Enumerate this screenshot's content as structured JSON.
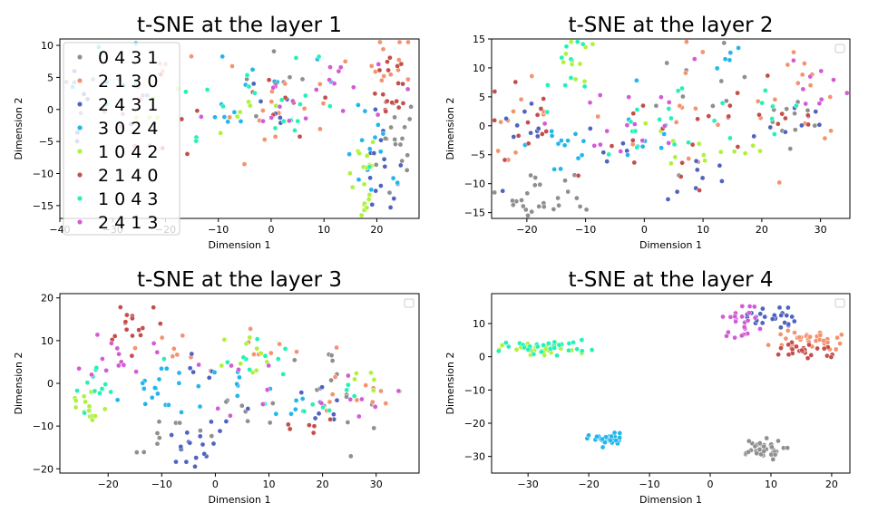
{
  "colors": {
    "0 4 3 1": "#8f8f8f",
    "2 1 3 0": "#f4936e",
    "2 4 3 1": "#4f63bf",
    "3 0 2 4": "#22b6ec",
    "1 0 4 2": "#aef23a",
    "2 1 4 0": "#c44e4a",
    "1 0 4 3": "#22f2b6",
    "2 4 1 3": "#d45bd6"
  },
  "legend_labels": [
    "0 4 3 1",
    "2 1 3 0",
    "2 4 3 1",
    "3 0 2 4",
    "1 0 4 2",
    "2 1 4 0",
    "1 0 4 3",
    "2 4 1 3"
  ],
  "chart_data": [
    {
      "type": "scatter",
      "title": "t-SNE at the layer 1",
      "xlabel": "Dimension 1",
      "ylabel": "Dimension 2",
      "xlim": [
        -40,
        28
      ],
      "ylim": [
        -17,
        11
      ],
      "xticks": [
        -40,
        -30,
        -20,
        -10,
        0,
        10,
        20
      ],
      "yticks": [
        -15,
        -10,
        -5,
        0,
        5,
        10
      ],
      "legend": "upper-left",
      "series": [
        {
          "name": "0 4 3 1",
          "clusters": [
            [
              24,
              -6,
              2,
              5,
              18
            ],
            [
              -35,
              5,
              3,
              3,
              6
            ],
            [
              2,
              3,
              4,
              3,
              6
            ]
          ]
        },
        {
          "name": "2 1 3 0",
          "clusters": [
            [
              23,
              7,
              2,
              3,
              12
            ],
            [
              -20,
              4,
              3,
              3,
              6
            ],
            [
              5,
              3,
              6,
              3,
              10
            ],
            [
              -5,
              -4,
              4,
              3,
              6
            ]
          ]
        },
        {
          "name": "2 4 3 1",
          "clusters": [
            [
              21,
              -10,
              2,
              4,
              14
            ],
            [
              -35,
              0,
              4,
              4,
              6
            ],
            [
              -3,
              -1,
              4,
              3,
              6
            ]
          ]
        },
        {
          "name": "3 0 2 4",
          "clusters": [
            [
              20,
              -8,
              3,
              4,
              14
            ],
            [
              -30,
              8,
              4,
              3,
              5
            ],
            [
              0,
              5,
              6,
              3,
              8
            ],
            [
              -12,
              -1,
              5,
              3,
              6
            ]
          ]
        },
        {
          "name": "1 0 4 2",
          "clusters": [
            [
              17,
              -11,
              1.5,
              4,
              18
            ],
            [
              -22,
              2,
              4,
              3,
              5
            ],
            [
              -5,
              0,
              5,
              3,
              6
            ]
          ]
        },
        {
          "name": "2 1 4 0",
          "clusters": [
            [
              24,
              5,
              2,
              3,
              12
            ],
            [
              22,
              1,
              2,
              2,
              6
            ],
            [
              0,
              2,
              6,
              3,
              10
            ],
            [
              -15,
              -3,
              4,
              3,
              4
            ]
          ]
        },
        {
          "name": "1 0 4 3",
          "clusters": [
            [
              -8,
              2,
              6,
              3,
              10
            ],
            [
              5,
              -1,
              5,
              4,
              10
            ],
            [
              -25,
              4,
              4,
              4,
              5
            ]
          ]
        },
        {
          "name": "2 4 1 3",
          "clusters": [
            [
              1,
              1,
              7,
              3,
              12
            ],
            [
              12,
              4,
              5,
              3,
              8
            ],
            [
              -25,
              -3,
              4,
              3,
              5
            ]
          ]
        }
      ]
    },
    {
      "type": "scatter",
      "title": "t-SNE at the layer 2",
      "xlabel": "Dimension 1",
      "ylabel": "Dimension 2",
      "xlim": [
        -26,
        35
      ],
      "ylim": [
        -16,
        15
      ],
      "xticks": [
        -20,
        -10,
        0,
        10,
        20,
        30
      ],
      "yticks": [
        -15,
        -10,
        -5,
        0,
        5,
        10,
        15
      ],
      "series": [
        {
          "name": "0 4 3 1",
          "clusters": [
            [
              -18,
              -12,
              3,
              2,
              22
            ],
            [
              10,
              5,
              4,
              4,
              10
            ],
            [
              25,
              1,
              3,
              4,
              10
            ],
            [
              -10,
              -12,
              2,
              2,
              4
            ]
          ]
        },
        {
          "name": "2 1 3 0",
          "clusters": [
            [
              -22,
              2,
              3,
              3,
              10
            ],
            [
              28,
              5,
              4,
              4,
              12
            ],
            [
              5,
              3,
              8,
              5,
              15
            ]
          ]
        },
        {
          "name": "2 4 3 1",
          "clusters": [
            [
              -20,
              -4,
              3,
              4,
              10
            ],
            [
              10,
              -9,
              3,
              2,
              8
            ],
            [
              25,
              0,
              4,
              3,
              8
            ],
            [
              -5,
              -3,
              3,
              3,
              5
            ]
          ]
        },
        {
          "name": "3 0 2 4",
          "clusters": [
            [
              -14,
              -3,
              3,
              4,
              14
            ],
            [
              0,
              -2,
              3,
              3,
              8
            ],
            [
              16,
              11,
              3,
              2,
              5
            ]
          ]
        },
        {
          "name": "1 0 4 2",
          "clusters": [
            [
              -12,
              11,
              2,
              2,
              10
            ],
            [
              5,
              -4,
              5,
              3,
              8
            ],
            [
              15,
              -6,
              3,
              2,
              5
            ]
          ]
        },
        {
          "name": "2 1 4 0",
          "clusters": [
            [
              -20,
              0,
              4,
              4,
              12
            ],
            [
              2,
              -5,
              5,
              4,
              12
            ],
            [
              15,
              3,
              4,
              4,
              8
            ],
            [
              25,
              -2,
              3,
              3,
              5
            ]
          ]
        },
        {
          "name": "1 0 4 3",
          "clusters": [
            [
              -12,
              10,
              2,
              3,
              10
            ],
            [
              5,
              0,
              7,
              5,
              15
            ],
            [
              20,
              3,
              5,
              3,
              8
            ]
          ]
        },
        {
          "name": "2 4 1 3",
          "clusters": [
            [
              30,
              8,
              3,
              3,
              10
            ],
            [
              -8,
              1,
              4,
              3,
              8
            ],
            [
              5,
              2,
              6,
              4,
              8
            ]
          ]
        }
      ]
    },
    {
      "type": "scatter",
      "title": "t-SNE at the layer 3",
      "xlabel": "Dimension 1",
      "ylabel": "Dimension 2",
      "xlim": [
        -29,
        38
      ],
      "ylim": [
        -21,
        21
      ],
      "xticks": [
        -20,
        -10,
        0,
        10,
        20,
        30
      ],
      "yticks": [
        -20,
        -10,
        0,
        10,
        20
      ],
      "series": [
        {
          "name": "0 4 3 1",
          "clusters": [
            [
              -8,
              -12,
              4,
              2,
              10
            ],
            [
              5,
              -7,
              4,
              4,
              8
            ],
            [
              20,
              2,
              4,
              3,
              10
            ],
            [
              27,
              -5,
              3,
              3,
              5
            ]
          ]
        },
        {
          "name": "2 1 3 0",
          "clusters": [
            [
              -8,
              8,
              3,
              3,
              8
            ],
            [
              10,
              6,
              4,
              3,
              8
            ],
            [
              25,
              -3,
              5,
              3,
              10
            ]
          ]
        },
        {
          "name": "2 4 3 1",
          "clusters": [
            [
              -5,
              -15,
              2,
              2,
              14
            ],
            [
              0,
              -10,
              3,
              2,
              5
            ],
            [
              20,
              -5,
              4,
              3,
              8
            ],
            [
              -5,
              2,
              3,
              3,
              5
            ]
          ]
        },
        {
          "name": "3 0 2 4",
          "clusters": [
            [
              -12,
              -4,
              3,
              3,
              12
            ],
            [
              -5,
              0,
              3,
              3,
              8
            ],
            [
              15,
              -7,
              4,
              3,
              6
            ],
            [
              5,
              0,
              3,
              3,
              6
            ]
          ]
        },
        {
          "name": "1 0 4 2",
          "clusters": [
            [
              -24,
              -6,
              2,
              3,
              14
            ],
            [
              8,
              7,
              4,
              3,
              10
            ],
            [
              28,
              0,
              3,
              3,
              6
            ]
          ]
        },
        {
          "name": "2 1 4 0",
          "clusters": [
            [
              -15,
              15,
              3,
              3,
              16
            ],
            [
              17,
              -10,
              3,
              2,
              6
            ]
          ]
        },
        {
          "name": "1 0 4 3",
          "clusters": [
            [
              -22,
              -2,
              2,
              3,
              12
            ],
            [
              5,
              5,
              5,
              3,
              10
            ],
            [
              20,
              -3,
              5,
              3,
              8
            ]
          ]
        },
        {
          "name": "2 4 1 3",
          "clusters": [
            [
              -18,
              7,
              3,
              3,
              14
            ],
            [
              10,
              0,
              5,
              4,
              8
            ],
            [
              25,
              0,
              5,
              4,
              8
            ]
          ]
        }
      ]
    },
    {
      "type": "scatter",
      "title": "t-SNE at the layer 4",
      "xlabel": "Dimension 1",
      "ylabel": "Dimension 2",
      "xlim": [
        -36,
        23
      ],
      "ylim": [
        -35,
        19
      ],
      "xticks": [
        -30,
        -20,
        -10,
        0,
        10,
        20
      ],
      "yticks": [
        -30,
        -20,
        -10,
        0,
        10
      ],
      "series": [
        {
          "name": "0 4 3 1",
          "clusters": [
            [
              8,
              -28,
              2,
              1.5,
              40
            ]
          ]
        },
        {
          "name": "2 1 3 0",
          "clusters": [
            [
              17,
              5,
              2.5,
              1.5,
              26
            ],
            [
              12,
              5,
              2,
              1,
              8
            ]
          ]
        },
        {
          "name": "2 4 3 1",
          "clusters": [
            [
              10,
              12,
              2,
              2,
              26
            ]
          ]
        },
        {
          "name": "3 0 2 4",
          "clusters": [
            [
              -17,
              -25,
              1.5,
              1,
              32
            ]
          ]
        },
        {
          "name": "1 0 4 2",
          "clusters": [
            [
              -28,
              2,
              3,
              1,
              30
            ]
          ]
        },
        {
          "name": "2 1 4 0",
          "clusters": [
            [
              16,
              2,
              3,
              1.5,
              26
            ]
          ]
        },
        {
          "name": "1 0 4 3",
          "clusters": [
            [
              -27,
              3,
              3.5,
              1,
              30
            ]
          ]
        },
        {
          "name": "2 4 1 3",
          "clusters": [
            [
              5,
              11,
              1.5,
              2.5,
              24
            ]
          ]
        }
      ]
    }
  ]
}
